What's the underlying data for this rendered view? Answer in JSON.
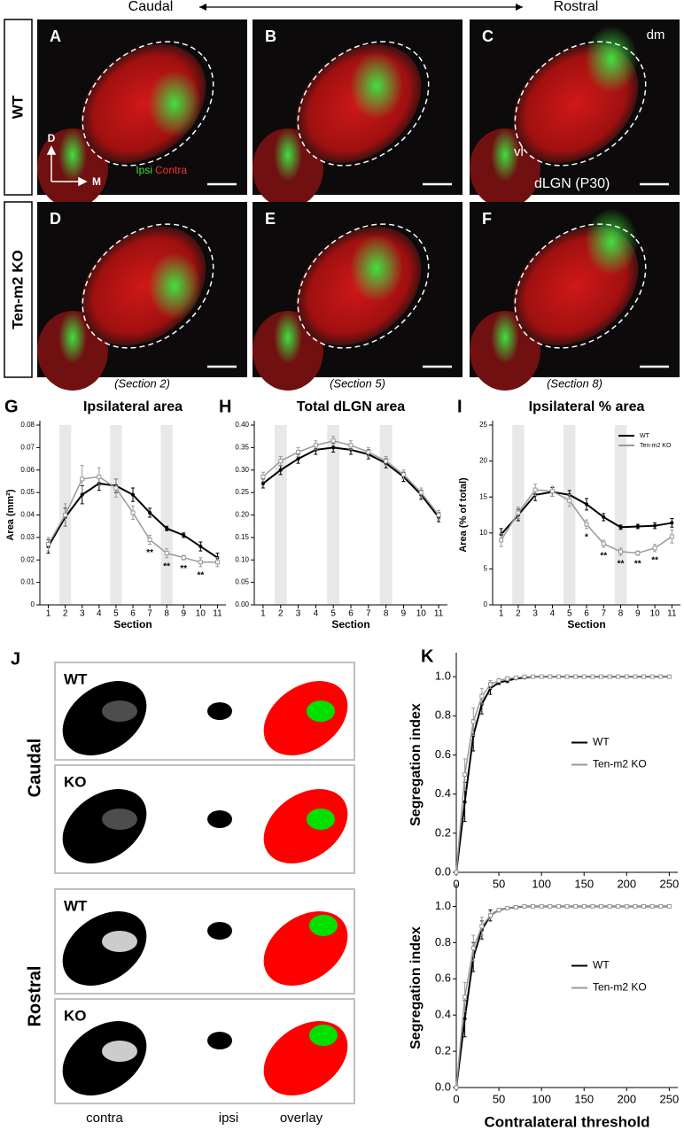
{
  "header": {
    "left": "Caudal",
    "right": "Rostral"
  },
  "rows": [
    {
      "label": "WT",
      "panels": [
        "A",
        "B",
        "C"
      ]
    },
    {
      "label": "Ten-m2 KO",
      "panels": [
        "D",
        "E",
        "F"
      ]
    }
  ],
  "annotations": {
    "dm": "dm",
    "vl": "vl",
    "age": "dLGN (P30)",
    "ipsi": "Ipsi",
    "contra": "Contra",
    "dorsal": "D",
    "medial": "M"
  },
  "sections": [
    "(Section 2)",
    "(Section 5)",
    "(Section 8)"
  ],
  "panel_j": {
    "letter": "J",
    "groups": [
      {
        "label": "Caudal",
        "rows": [
          "WT",
          "KO"
        ]
      },
      {
        "label": "Rostral",
        "rows": [
          "WT",
          "KO"
        ]
      }
    ],
    "columns": [
      "contra",
      "ipsi",
      "overlay"
    ]
  },
  "chart_data": [
    {
      "type": "line",
      "letter": "G",
      "title": "Ipsilateral area",
      "x_label": "Section",
      "y_label": "Area (mm²)",
      "x": [
        1,
        2,
        3,
        4,
        5,
        6,
        7,
        8,
        9,
        10,
        11
      ],
      "xlim": [
        0.5,
        11.5
      ],
      "xticks": [
        1,
        2,
        3,
        4,
        5,
        6,
        7,
        8,
        9,
        10,
        11
      ],
      "ylim": [
        0,
        0.08
      ],
      "yticks": [
        0,
        0.01,
        0.02,
        0.03,
        0.04,
        0.05,
        0.06,
        0.07,
        0.08
      ],
      "highlight_x": [
        2,
        5,
        8
      ],
      "series": [
        {
          "name": "WT",
          "color": "#000000",
          "values": [
            0.026,
            0.039,
            0.049,
            0.054,
            0.053,
            0.049,
            0.041,
            0.034,
            0.031,
            0.026,
            0.021
          ],
          "errors": [
            0.003,
            0.004,
            0.004,
            0.003,
            0.003,
            0.003,
            0.002,
            0.001,
            0.001,
            0.002,
            0.002
          ]
        },
        {
          "name": "Ten-m2 KO",
          "color": "#999999",
          "values": [
            0.027,
            0.04,
            0.056,
            0.057,
            0.052,
            0.041,
            0.029,
            0.023,
            0.021,
            0.019,
            0.019
          ],
          "errors": [
            0.003,
            0.005,
            0.006,
            0.004,
            0.004,
            0.003,
            0.002,
            0.002,
            0.001,
            0.002,
            0.002
          ]
        }
      ],
      "significance": [
        {
          "x": 7,
          "label": "**"
        },
        {
          "x": 8,
          "label": "**"
        },
        {
          "x": 9,
          "label": "**"
        },
        {
          "x": 10,
          "label": "**"
        }
      ]
    },
    {
      "type": "line",
      "letter": "H",
      "title": "Total dLGN area",
      "x_label": "Section",
      "x": [
        1,
        2,
        3,
        4,
        5,
        6,
        7,
        8,
        9,
        10,
        11
      ],
      "xlim": [
        0.5,
        11.5
      ],
      "xticks": [
        1,
        2,
        3,
        4,
        5,
        6,
        7,
        8,
        9,
        10,
        11
      ],
      "ylim": [
        0,
        0.4
      ],
      "yticks": [
        {
          "value": 0,
          "label": "0.00"
        },
        0.05,
        {
          "value": 0.1,
          "label": "0.10"
        },
        0.15,
        {
          "value": 0.2,
          "label": "0.20"
        },
        0.25,
        {
          "value": 0.3,
          "label": "0.30"
        },
        0.35,
        {
          "value": 0.4,
          "label": "0.40"
        }
      ],
      "highlight_x": [
        2,
        5,
        8
      ],
      "series": [
        {
          "name": "WT",
          "color": "#000000",
          "values": [
            0.27,
            0.3,
            0.325,
            0.345,
            0.35,
            0.345,
            0.335,
            0.315,
            0.285,
            0.245,
            0.195
          ],
          "errors": [
            0.01,
            0.01,
            0.01,
            0.01,
            0.01,
            0.01,
            0.01,
            0.01,
            0.01,
            0.01,
            0.01
          ]
        },
        {
          "name": "Ten-m2 KO",
          "color": "#999999",
          "values": [
            0.285,
            0.32,
            0.34,
            0.355,
            0.365,
            0.355,
            0.34,
            0.32,
            0.29,
            0.25,
            0.2
          ],
          "errors": [
            0.01,
            0.01,
            0.01,
            0.01,
            0.01,
            0.01,
            0.01,
            0.01,
            0.01,
            0.01,
            0.01
          ]
        }
      ]
    },
    {
      "type": "line",
      "letter": "I",
      "title": "Ipsilateral % area",
      "x_label": "Section",
      "y_label": "Area (% of total)",
      "x": [
        1,
        2,
        3,
        4,
        5,
        6,
        7,
        8,
        9,
        10,
        11
      ],
      "xlim": [
        0.5,
        11.5
      ],
      "xticks": [
        1,
        2,
        3,
        4,
        5,
        6,
        7,
        8,
        9,
        10,
        11
      ],
      "ylim": [
        0,
        25
      ],
      "yticks": [
        0,
        5,
        10,
        15,
        20,
        25
      ],
      "highlight_x": [
        2,
        5,
        8
      ],
      "legend": "upper right",
      "series": [
        {
          "name": "WT",
          "color": "#000000",
          "values": [
            9.8,
            12.5,
            15.3,
            15.7,
            15.3,
            14.0,
            12.2,
            10.8,
            10.9,
            11.0,
            11.4
          ],
          "errors": [
            0.8,
            0.8,
            0.8,
            0.6,
            0.6,
            0.8,
            0.5,
            0.3,
            0.3,
            0.4,
            0.6
          ]
        },
        {
          "name": "Ten-m2 KO",
          "color": "#999999",
          "values": [
            9.0,
            12.8,
            16.0,
            15.8,
            14.5,
            11.2,
            8.5,
            7.4,
            7.2,
            7.9,
            9.5
          ],
          "errors": [
            0.9,
            0.8,
            0.8,
            0.7,
            0.8,
            0.6,
            0.5,
            0.5,
            0.3,
            0.5,
            0.9
          ]
        }
      ],
      "significance": [
        {
          "x": 6,
          "label": "*"
        },
        {
          "x": 7,
          "label": "**"
        },
        {
          "x": 8,
          "label": "**"
        },
        {
          "x": 9,
          "label": "**"
        },
        {
          "x": 10,
          "label": "**"
        }
      ]
    },
    {
      "type": "line",
      "letter": "K",
      "y_label": "Segregation index",
      "x": [
        0,
        10,
        20,
        30,
        40,
        50,
        60,
        70,
        80,
        90,
        100,
        110,
        120,
        130,
        140,
        150,
        160,
        170,
        180,
        190,
        200,
        210,
        220,
        230,
        240,
        250
      ],
      "xlim": [
        0,
        260
      ],
      "xticks": [
        0,
        50,
        100,
        150,
        200,
        250
      ],
      "ylim": [
        0,
        1.1
      ],
      "yticks": [
        {
          "value": 0,
          "label": "0.0"
        },
        0.2,
        0.4,
        0.6,
        0.8,
        {
          "value": 1,
          "label": "1.0"
        }
      ],
      "legend": "center right",
      "series": [
        {
          "name": "WT",
          "color": "#000000",
          "values": [
            0,
            0.36,
            0.7,
            0.86,
            0.94,
            0.97,
            0.98,
            0.99,
            0.995,
            1,
            1,
            1,
            1,
            1,
            1,
            1,
            1,
            1,
            1,
            1,
            1,
            1,
            1,
            1,
            1,
            1
          ],
          "errors": [
            0,
            0.1,
            0.08,
            0.05,
            0.03,
            0.01,
            0.01,
            0,
            0,
            0,
            0,
            0,
            0,
            0,
            0,
            0,
            0,
            0,
            0,
            0,
            0,
            0,
            0,
            0,
            0,
            0
          ]
        },
        {
          "name": "Ten-m2 KO",
          "color": "#999999",
          "values": [
            0,
            0.5,
            0.77,
            0.9,
            0.96,
            0.98,
            0.99,
            0.995,
            1,
            1,
            1,
            1,
            1,
            1,
            1,
            1,
            1,
            1,
            1,
            1,
            1,
            1,
            1,
            1,
            1,
            1
          ],
          "errors": [
            0,
            0.08,
            0.07,
            0.04,
            0.02,
            0.01,
            0.01,
            0,
            0,
            0,
            0,
            0,
            0,
            0,
            0,
            0,
            0,
            0,
            0,
            0,
            0,
            0,
            0,
            0,
            0,
            0
          ]
        }
      ]
    },
    {
      "type": "line",
      "x_label": "Contralateral threshold",
      "y_label": "Segregation index",
      "x": [
        0,
        10,
        20,
        30,
        40,
        50,
        60,
        70,
        80,
        90,
        100,
        110,
        120,
        130,
        140,
        150,
        160,
        170,
        180,
        190,
        200,
        210,
        220,
        230,
        240,
        250
      ],
      "xlim": [
        0,
        260
      ],
      "xticks": [
        0,
        50,
        100,
        150,
        200,
        250
      ],
      "ylim": [
        0,
        1.1
      ],
      "yticks": [
        {
          "value": 0,
          "label": "0.0"
        },
        0.2,
        0.4,
        0.6,
        0.8,
        {
          "value": 1,
          "label": "1.0"
        }
      ],
      "legend": "center right",
      "series": [
        {
          "name": "WT",
          "color": "#000000",
          "values": [
            0,
            0.38,
            0.72,
            0.87,
            0.95,
            0.98,
            0.99,
            0.995,
            1,
            1,
            1,
            1,
            1,
            1,
            1,
            1,
            1,
            1,
            1,
            1,
            1,
            1,
            1,
            1,
            1,
            1
          ],
          "errors": [
            0,
            0.1,
            0.08,
            0.05,
            0.03,
            0.01,
            0.01,
            0,
            0,
            0,
            0,
            0,
            0,
            0,
            0,
            0,
            0,
            0,
            0,
            0,
            0,
            0,
            0,
            0,
            0,
            0
          ]
        },
        {
          "name": "Ten-m2 KO",
          "color": "#999999",
          "values": [
            0,
            0.5,
            0.77,
            0.89,
            0.95,
            0.98,
            0.99,
            0.995,
            1,
            1,
            1,
            1,
            1,
            1,
            1,
            1,
            1,
            1,
            1,
            1,
            1,
            1,
            1,
            1,
            1,
            1
          ],
          "errors": [
            0,
            0.08,
            0.07,
            0.05,
            0.02,
            0.01,
            0.01,
            0,
            0,
            0,
            0,
            0,
            0,
            0,
            0,
            0,
            0,
            0,
            0,
            0,
            0,
            0,
            0,
            0,
            0,
            0
          ]
        }
      ]
    }
  ]
}
